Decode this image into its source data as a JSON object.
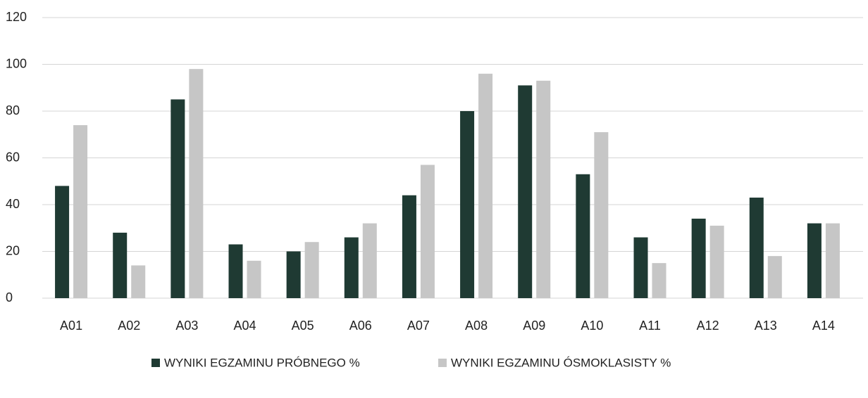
{
  "chart_data": {
    "type": "bar",
    "categories": [
      "A01",
      "A02",
      "A03",
      "A04",
      "A05",
      "A06",
      "A07",
      "A08",
      "A09",
      "A10",
      "A11",
      "A12",
      "A13",
      "A14"
    ],
    "series": [
      {
        "name": "WYNIKI EGZAMINU PRÓBNEGO %",
        "color": "#1f3a33",
        "values": [
          48,
          28,
          85,
          23,
          20,
          26,
          44,
          80,
          91,
          53,
          26,
          34,
          43,
          32
        ]
      },
      {
        "name": "WYNIKI EGZAMINU ÓSMOKLASISTY  %",
        "color": "#c6c6c6",
        "values": [
          74,
          14,
          98,
          16,
          24,
          32,
          57,
          96,
          93,
          71,
          15,
          31,
          18,
          32
        ]
      }
    ],
    "ylim": [
      0,
      120
    ],
    "yticks": [
      0,
      20,
      40,
      60,
      80,
      100,
      120
    ],
    "grid": true,
    "legend": "bottom"
  }
}
